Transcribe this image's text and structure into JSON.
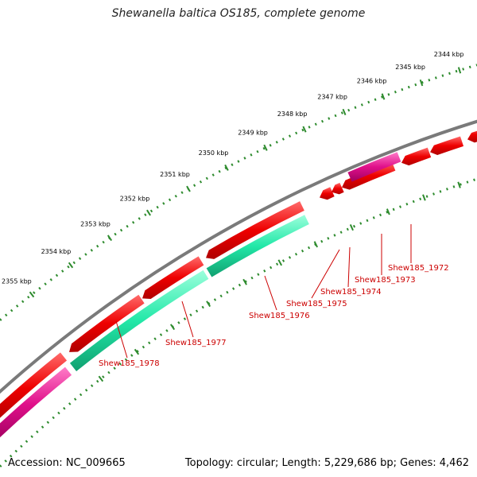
{
  "title": "Shewanella baltica OS185, complete genome",
  "footer": {
    "accession": "Accession: NC_009665",
    "topology": "Topology: circular; Length: 5,229,686 bp; Genes: 4,462"
  },
  "colors": {
    "backbone": "#7a7a7a",
    "cds_red": "#ee0000",
    "cds_pink": "#e0108a",
    "cds_teal": "#22e8a8",
    "tick_green": "#2e8b2e",
    "label_red": "#cc0000"
  },
  "scale": {
    "unit": "kbp",
    "ticks": [
      "2344 kbp",
      "2345 kbp",
      "2346 kbp",
      "2347 kbp",
      "2348 kbp",
      "2349 kbp",
      "2350 kbp",
      "2351 kbp",
      "2352 kbp",
      "2353 kbp",
      "2354 kbp",
      "2355 kbp"
    ]
  },
  "genes": [
    "Shew185_1972",
    "Shew185_1973",
    "Shew185_1974",
    "Shew185_1975",
    "Shew185_1976",
    "Shew185_1977",
    "Shew185_1978"
  ]
}
